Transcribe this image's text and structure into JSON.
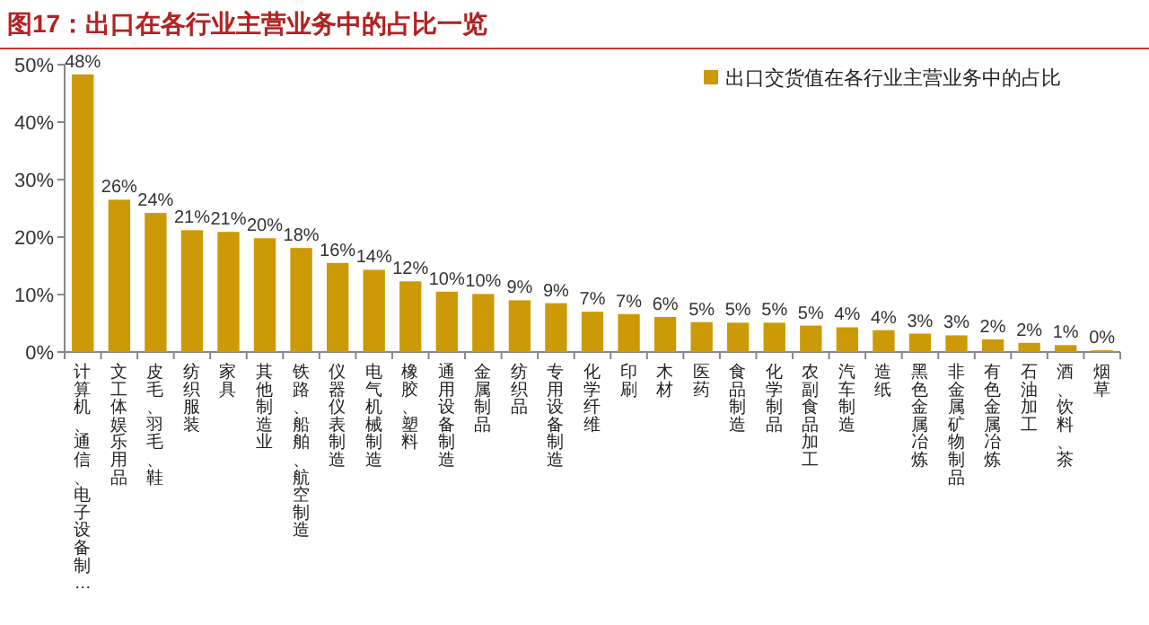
{
  "chart_data": {
    "type": "bar",
    "title": "图17：出口在各行业主营业务中的占比一览",
    "categories": [
      "计算机、通信、电子设备制…",
      "文工体娱乐用品",
      "皮毛、羽毛、鞋",
      "纺织服装",
      "家具",
      "其他制造业",
      "铁路、船舶、航空制造",
      "仪器仪表制造",
      "电气机械制造",
      "橡胶、塑料",
      "通用设备制造",
      "金属制品",
      "纺织品",
      "专用设备制造",
      "化学纤维",
      "印刷",
      "木材",
      "医药",
      "食品制造",
      "化学制品",
      "农副食品加工",
      "汽车制造",
      "造纸",
      "黑色金属冶炼",
      "非金属矿物制品",
      "有色金属冶炼",
      "石油加工",
      "酒、饮料、茶",
      "烟草"
    ],
    "series": [
      {
        "name": "出口交货值在各行业主营业务中的占比",
        "color": "#cc9a06",
        "values": [
          48.3,
          26.5,
          24.2,
          21.2,
          20.9,
          19.8,
          18.1,
          15.5,
          14.3,
          12.3,
          10.5,
          10.1,
          9.0,
          8.5,
          7.0,
          6.6,
          6.1,
          5.2,
          5.1,
          5.1,
          4.6,
          4.3,
          3.8,
          3.2,
          2.9,
          2.2,
          1.6,
          1.2,
          0.3
        ],
        "value_labels": [
          "48%",
          "26%",
          "24%",
          "21%",
          "21%",
          "20%",
          "18%",
          "16%",
          "14%",
          "12%",
          "10%",
          "10%",
          "9%",
          "9%",
          "7%",
          "7%",
          "6%",
          "5%",
          "5%",
          "5%",
          "5%",
          "4%",
          "4%",
          "3%",
          "3%",
          "2%",
          "2%",
          "1%",
          "0%"
        ]
      }
    ],
    "ylim": [
      0,
      50
    ],
    "yticks": [
      {
        "value": 0,
        "label": "0%"
      },
      {
        "value": 10,
        "label": "10%"
      },
      {
        "value": 20,
        "label": "20%"
      },
      {
        "value": 30,
        "label": "30%"
      },
      {
        "value": 40,
        "label": "40%"
      },
      {
        "value": 50,
        "label": "50%"
      }
    ],
    "legend": "top right",
    "grid": false
  }
}
